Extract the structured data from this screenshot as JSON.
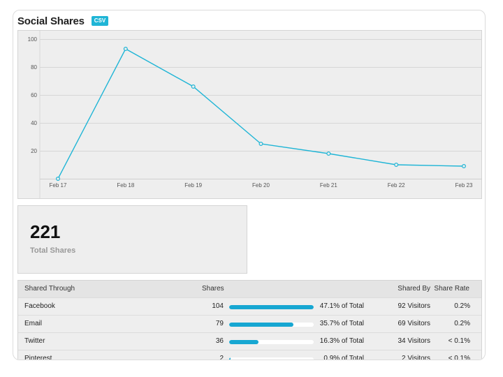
{
  "header": {
    "title": "Social Shares",
    "csv_label": "CSV"
  },
  "colors": {
    "accent": "#1fb5d6",
    "bar": "#17a7d2",
    "panel": "#eeeeee"
  },
  "chart_data": {
    "type": "line",
    "title": "",
    "xlabel": "",
    "ylabel": "",
    "categories": [
      "Feb 17",
      "Feb 18",
      "Feb 19",
      "Feb 20",
      "Feb 21",
      "Feb 22",
      "Feb 23"
    ],
    "values": [
      0,
      93,
      66,
      25,
      18,
      10,
      9
    ],
    "y_ticks": [
      "20",
      "40",
      "60",
      "80",
      "100"
    ],
    "ylim": [
      0,
      100
    ],
    "grid": true
  },
  "summary": {
    "total": "221",
    "label": "Total Shares"
  },
  "table": {
    "headers": {
      "name": "Shared Through",
      "shares": "Shares",
      "shared_by": "Shared By",
      "rate": "Share Rate"
    },
    "rows": [
      {
        "name": "Facebook",
        "shares": "104",
        "share_fraction": 1.0,
        "pct": "47.1% of Total",
        "shared_by": "92 Visitors",
        "rate": "0.2%"
      },
      {
        "name": "Email",
        "shares": "79",
        "share_fraction": 0.76,
        "pct": "35.7% of Total",
        "shared_by": "69 Visitors",
        "rate": "0.2%"
      },
      {
        "name": "Twitter",
        "shares": "36",
        "share_fraction": 0.35,
        "pct": "16.3% of Total",
        "shared_by": "34 Visitors",
        "rate": "< 0.1%"
      },
      {
        "name": "Pinterest",
        "shares": "2",
        "share_fraction": 0.02,
        "pct": "0.9% of Total",
        "shared_by": "2 Visitors",
        "rate": "< 0.1%"
      }
    ]
  }
}
